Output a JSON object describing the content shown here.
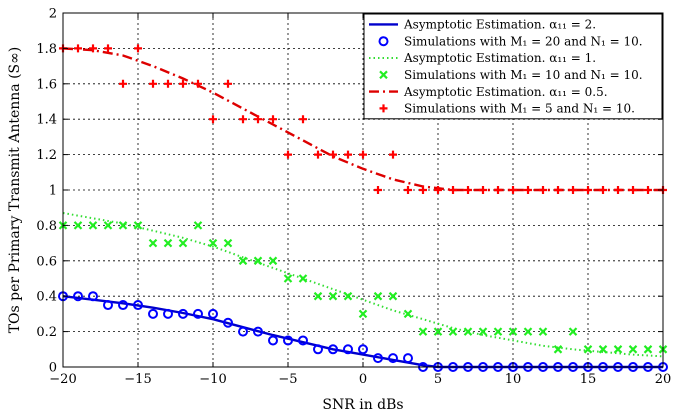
{
  "chart_data": {
    "type": "line",
    "title": "",
    "xlabel": "SNR in dBs",
    "ylabel": "TOs per Primary Transmit Antenna (S∞)",
    "xlim": [
      -20,
      20
    ],
    "ylim": [
      0,
      2
    ],
    "xticks": [
      -20,
      -15,
      -10,
      -5,
      0,
      5,
      10,
      15,
      20
    ],
    "yticks": [
      0,
      0.2,
      0.4,
      0.6,
      0.8,
      1,
      1.2,
      1.4,
      1.6,
      1.8,
      2
    ],
    "xtick_labels": [
      "−20",
      "−15",
      "−10",
      "−5",
      "0",
      "5",
      "10",
      "15",
      "20"
    ],
    "ytick_labels": [
      "0",
      "0.2",
      "0.4",
      "0.6",
      "0.8",
      "1",
      "1.2",
      "1.4",
      "1.6",
      "1.8",
      "2"
    ],
    "grid": true,
    "legend_position": "top-right",
    "series": [
      {
        "name": "Asymptotic Estimation. α₁₁ = 2.",
        "kind": "line",
        "style": "solid",
        "color": "#0000cc",
        "x": [
          -20,
          -18,
          -16,
          -14,
          -12,
          -10,
          -8,
          -6,
          -4,
          -2,
          0,
          2,
          4,
          5,
          6,
          8,
          10,
          12,
          14,
          16,
          18,
          20
        ],
        "y": [
          0.4,
          0.38,
          0.36,
          0.335,
          0.305,
          0.27,
          0.225,
          0.18,
          0.14,
          0.1,
          0.07,
          0.04,
          0.01,
          0.0,
          0.0,
          0.0,
          0.0,
          0.0,
          0.0,
          0.0,
          0.0,
          0.0
        ]
      },
      {
        "name": "Simulations with M₁ = 20 and N₁ = 10.",
        "kind": "scatter",
        "marker": "circle",
        "color": "#0000ff",
        "x": [
          -20,
          -19,
          -18,
          -17,
          -16,
          -15,
          -14,
          -13,
          -12,
          -11,
          -10,
          -9,
          -8,
          -7,
          -6,
          -5,
          -4,
          -3,
          -2,
          -1,
          0,
          1,
          2,
          3,
          4,
          5,
          6,
          7,
          8,
          9,
          10,
          11,
          12,
          13,
          14,
          15,
          16,
          17,
          18,
          19,
          20
        ],
        "y": [
          0.4,
          0.4,
          0.4,
          0.35,
          0.35,
          0.35,
          0.3,
          0.3,
          0.3,
          0.3,
          0.3,
          0.25,
          0.2,
          0.2,
          0.15,
          0.15,
          0.15,
          0.1,
          0.1,
          0.1,
          0.1,
          0.05,
          0.05,
          0.05,
          0,
          0,
          0,
          0,
          0,
          0,
          0,
          0,
          0,
          0,
          0,
          0,
          0,
          0,
          0,
          0,
          0
        ]
      },
      {
        "name": "Asymptotic Estimation. α₁₁ = 1.",
        "kind": "line",
        "style": "dotted",
        "color": "#33dd33",
        "x": [
          -20,
          -18,
          -16,
          -14,
          -12,
          -10,
          -8,
          -6,
          -4,
          -2,
          0,
          2,
          4,
          6,
          8,
          10,
          12,
          14,
          16,
          18,
          20
        ],
        "y": [
          0.87,
          0.84,
          0.81,
          0.77,
          0.73,
          0.68,
          0.62,
          0.56,
          0.5,
          0.44,
          0.38,
          0.32,
          0.27,
          0.22,
          0.18,
          0.15,
          0.12,
          0.1,
          0.085,
          0.07,
          0.06
        ]
      },
      {
        "name": "Simulations with M₁ = 10 and N₁ = 10.",
        "kind": "scatter",
        "marker": "x",
        "color": "#22ee22",
        "x": [
          -20,
          -19,
          -18,
          -17,
          -16,
          -15,
          -14,
          -13,
          -12,
          -11,
          -10,
          -9,
          -8,
          -7,
          -6,
          -5,
          -4,
          -3,
          -2,
          -1,
          0,
          1,
          2,
          3,
          4,
          5,
          6,
          7,
          8,
          9,
          10,
          11,
          12,
          13,
          14,
          15,
          16,
          17,
          18,
          19,
          20
        ],
        "y": [
          0.8,
          0.8,
          0.8,
          0.8,
          0.8,
          0.8,
          0.7,
          0.7,
          0.7,
          0.8,
          0.7,
          0.7,
          0.6,
          0.6,
          0.6,
          0.5,
          0.5,
          0.4,
          0.4,
          0.4,
          0.3,
          0.4,
          0.4,
          0.3,
          0.2,
          0.2,
          0.2,
          0.2,
          0.2,
          0.2,
          0.2,
          0.2,
          0.2,
          0.1,
          0.2,
          0.1,
          0.1,
          0.1,
          0.1,
          0.1,
          0.1
        ]
      },
      {
        "name": "Asymptotic Estimation. α₁₁ = 0.5.",
        "kind": "line",
        "style": "dashdot",
        "color": "#dd0000",
        "x": [
          -20,
          -18,
          -16,
          -14,
          -12,
          -10,
          -8,
          -6,
          -4,
          -2,
          0,
          2,
          4,
          5,
          6,
          8,
          10,
          12,
          14,
          16,
          18,
          20
        ],
        "y": [
          1.8,
          1.79,
          1.76,
          1.7,
          1.63,
          1.55,
          1.46,
          1.37,
          1.28,
          1.19,
          1.12,
          1.06,
          1.02,
          1.01,
          1.0,
          1.0,
          1.0,
          1.0,
          1.0,
          1.0,
          1.0,
          1.0
        ]
      },
      {
        "name": "Simulations with M₁ = 5 and N₁ = 10.",
        "kind": "scatter",
        "marker": "plus",
        "color": "#ff0000",
        "x": [
          -20,
          -19,
          -18,
          -17,
          -16,
          -15,
          -14,
          -13,
          -12,
          -11,
          -10,
          -9,
          -8,
          -7,
          -6,
          -5,
          -4,
          -3,
          -2,
          -1,
          0,
          1,
          2,
          3,
          4,
          5,
          6,
          7,
          8,
          9,
          10,
          11,
          12,
          13,
          14,
          15,
          16,
          17,
          18,
          19,
          20
        ],
        "y": [
          1.8,
          1.8,
          1.8,
          1.8,
          1.6,
          1.8,
          1.6,
          1.6,
          1.6,
          1.6,
          1.4,
          1.6,
          1.4,
          1.4,
          1.4,
          1.2,
          1.4,
          1.2,
          1.2,
          1.2,
          1.2,
          1.0,
          1.2,
          1.0,
          1.0,
          1.0,
          1.0,
          1.0,
          1.0,
          1.0,
          1.0,
          1.0,
          1.0,
          1.0,
          1.0,
          1.0,
          1.0,
          1.0,
          1.0,
          1.0,
          1.0
        ]
      }
    ]
  }
}
